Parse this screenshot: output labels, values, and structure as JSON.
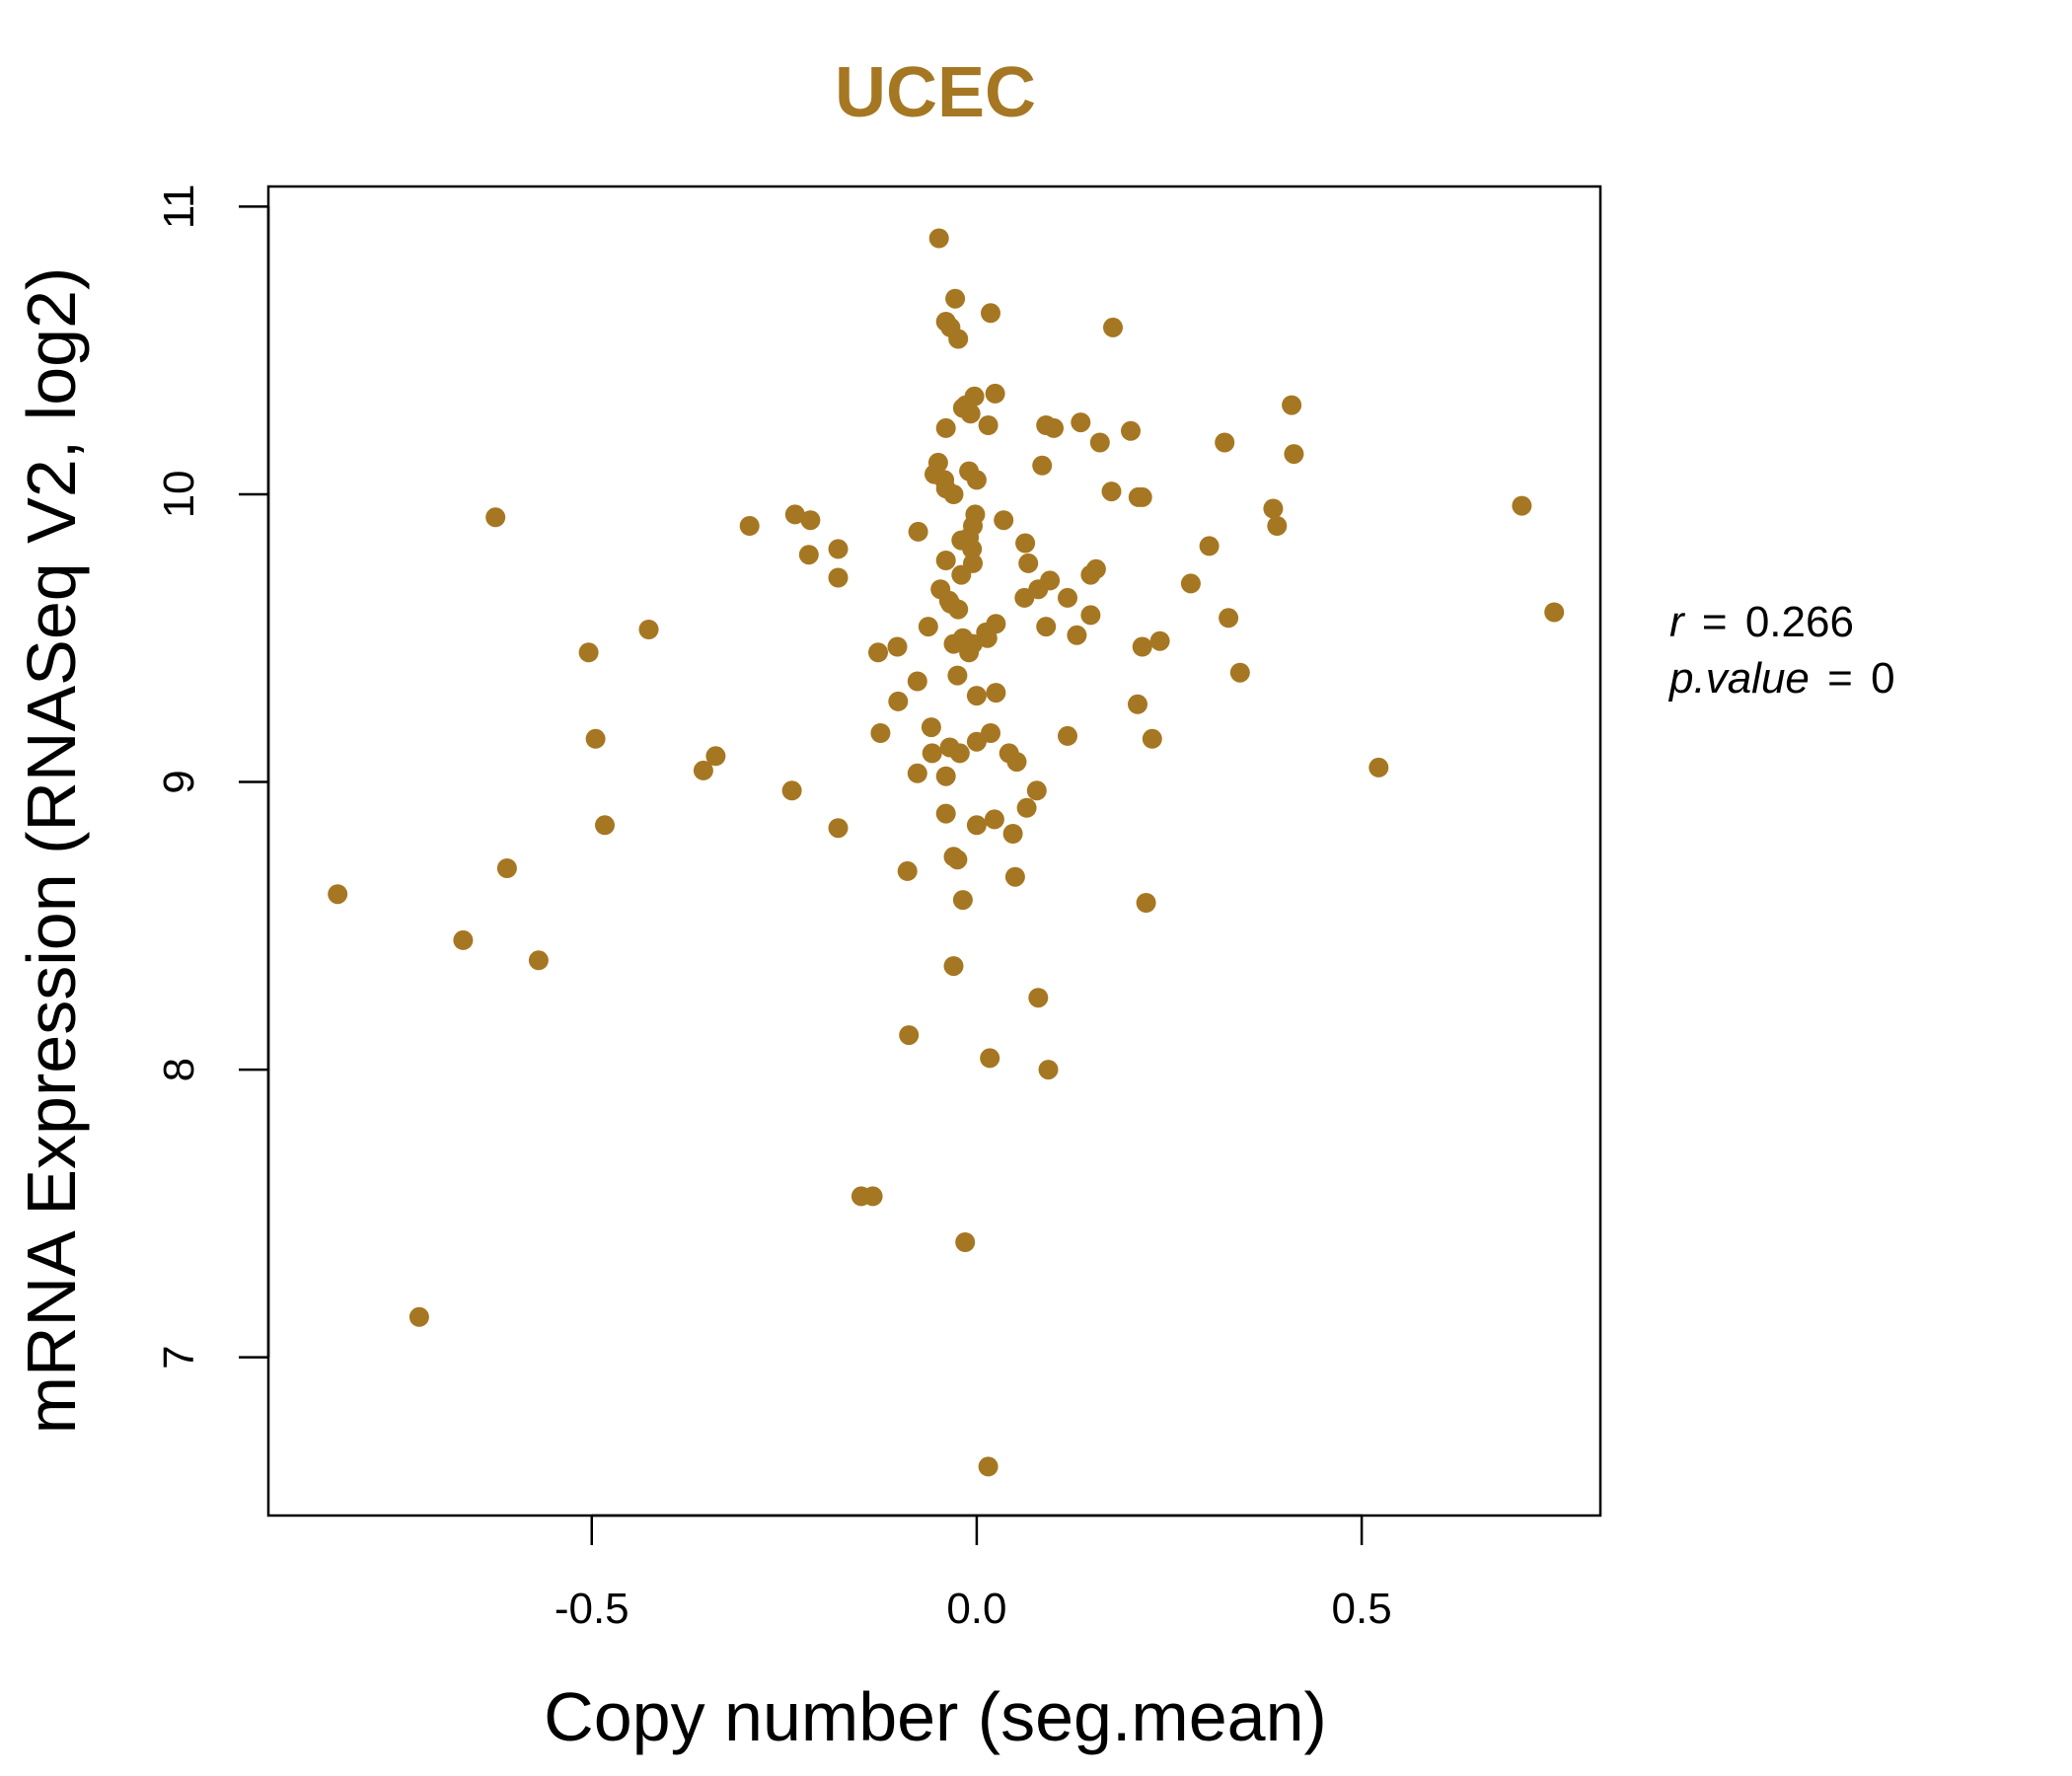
{
  "colors": {
    "accent": "#A67722",
    "axis": "#000000",
    "background": "#ffffff"
  },
  "chart_data": {
    "type": "scatter",
    "title": "UCEC",
    "xlabel": "Copy number (seg.mean)",
    "ylabel": "mRNA Expression (RNASeq V2, log2)",
    "xlim": [
      -0.92,
      0.81
    ],
    "ylim": [
      6.45,
      11.07
    ],
    "x_ticks": [
      {
        "value": -0.5,
        "label": "-0.5"
      },
      {
        "value": 0.0,
        "label": "0.0"
      },
      {
        "value": 0.5,
        "label": "0.5"
      }
    ],
    "y_ticks": [
      {
        "value": 7,
        "label": "7"
      },
      {
        "value": 8,
        "label": "8"
      },
      {
        "value": 9,
        "label": "9"
      },
      {
        "value": 10,
        "label": "10"
      },
      {
        "value": 11,
        "label": "11"
      }
    ],
    "grid": false,
    "legend": "none",
    "annotations": {
      "r_label": "r",
      "r_value": "0.266",
      "p_label": "p.value",
      "p_value": "0"
    },
    "x": [
      -0.049,
      -0.028,
      -0.04,
      -0.034,
      -0.024,
      0.018,
      0.177,
      -0.003,
      -0.014,
      0.024,
      -0.008,
      -0.018,
      0.135,
      0.409,
      -0.04,
      0.015,
      0.09,
      0.1,
      0.2,
      0.16,
      0.322,
      0.412,
      -0.05,
      -0.055,
      -0.01,
      0.0,
      0.085,
      -0.042,
      -0.04,
      -0.03,
      0.175,
      0.21,
      0.215,
      -0.625,
      -0.236,
      -0.216,
      -0.002,
      -0.005,
      0.035,
      0.385,
      0.39,
      0.708,
      -0.295,
      -0.076,
      -0.01,
      -0.02,
      -0.006,
      0.063,
      -0.218,
      -0.18,
      -0.04,
      -0.005,
      0.067,
      0.095,
      -0.18,
      -0.02,
      -0.047,
      0.08,
      0.148,
      0.155,
      0.278,
      0.118,
      0.062,
      -0.036,
      -0.034,
      -0.024,
      -0.063,
      0.148,
      0.012,
      0.025,
      0.09,
      0.13,
      -0.018,
      0.327,
      0.75,
      -0.03,
      -0.005,
      0.014,
      -0.01,
      0.238,
      0.215,
      0.302,
      -0.426,
      -0.128,
      -0.103,
      -0.504,
      0.342,
      -0.025,
      -0.077,
      0.025,
      0.0,
      0.209,
      -0.102,
      -0.495,
      -0.125,
      0.118,
      0.228,
      -0.059,
      -0.058,
      -0.035,
      -0.022,
      0.018,
      0.042,
      0.052,
      0.0,
      -0.339,
      -0.355,
      -0.077,
      -0.04,
      0.522,
      -0.24,
      -0.135,
      0.078,
      -0.04,
      0.023,
      -0.483,
      0.047,
      -0.18,
      -0.03,
      0.0,
      -0.025,
      -0.61,
      0.065,
      -0.09,
      0.05,
      -0.018,
      0.22,
      -0.667,
      -0.569,
      -0.03,
      0.08,
      -0.088,
      0.017,
      0.093,
      -0.15,
      -0.015,
      -0.83,
      -0.724,
      0.015
    ],
    "y": [
      10.89,
      10.68,
      10.6,
      10.58,
      10.54,
      10.63,
      10.58,
      10.34,
      10.31,
      10.35,
      10.28,
      10.3,
      10.25,
      10.31,
      10.23,
      10.24,
      10.24,
      10.23,
      10.22,
      10.18,
      10.18,
      10.14,
      10.11,
      10.07,
      10.08,
      10.05,
      10.1,
      10.05,
      10.02,
      10.0,
      10.01,
      9.99,
      9.99,
      9.92,
      9.93,
      9.91,
      9.93,
      9.89,
      9.91,
      9.95,
      9.89,
      9.96,
      9.89,
      9.87,
      9.85,
      9.84,
      9.81,
      9.83,
      9.79,
      9.81,
      9.77,
      9.76,
      9.76,
      9.7,
      9.71,
      9.72,
      9.67,
      9.67,
      9.72,
      9.74,
      9.69,
      9.64,
      9.64,
      9.63,
      9.62,
      9.6,
      9.54,
      9.58,
      9.52,
      9.55,
      9.54,
      9.51,
      9.5,
      9.57,
      9.59,
      9.48,
      9.48,
      9.5,
      9.45,
      9.49,
      9.47,
      9.82,
      9.53,
      9.45,
      9.47,
      9.45,
      9.38,
      9.37,
      9.35,
      9.31,
      9.3,
      9.27,
      9.28,
      9.15,
      9.17,
      9.16,
      9.15,
      9.19,
      9.1,
      9.12,
      9.1,
      9.17,
      9.1,
      9.07,
      9.14,
      9.09,
      9.04,
      9.03,
      9.02,
      9.05,
      8.97,
      7.56,
      8.97,
      8.89,
      8.87,
      8.85,
      8.82,
      8.84,
      8.74,
      8.85,
      8.73,
      8.7,
      8.91,
      8.69,
      8.67,
      8.59,
      8.58,
      8.45,
      8.38,
      8.36,
      8.25,
      8.12,
      8.04,
      8.0,
      7.56,
      7.4,
      8.61,
      7.14,
      6.62
    ]
  }
}
